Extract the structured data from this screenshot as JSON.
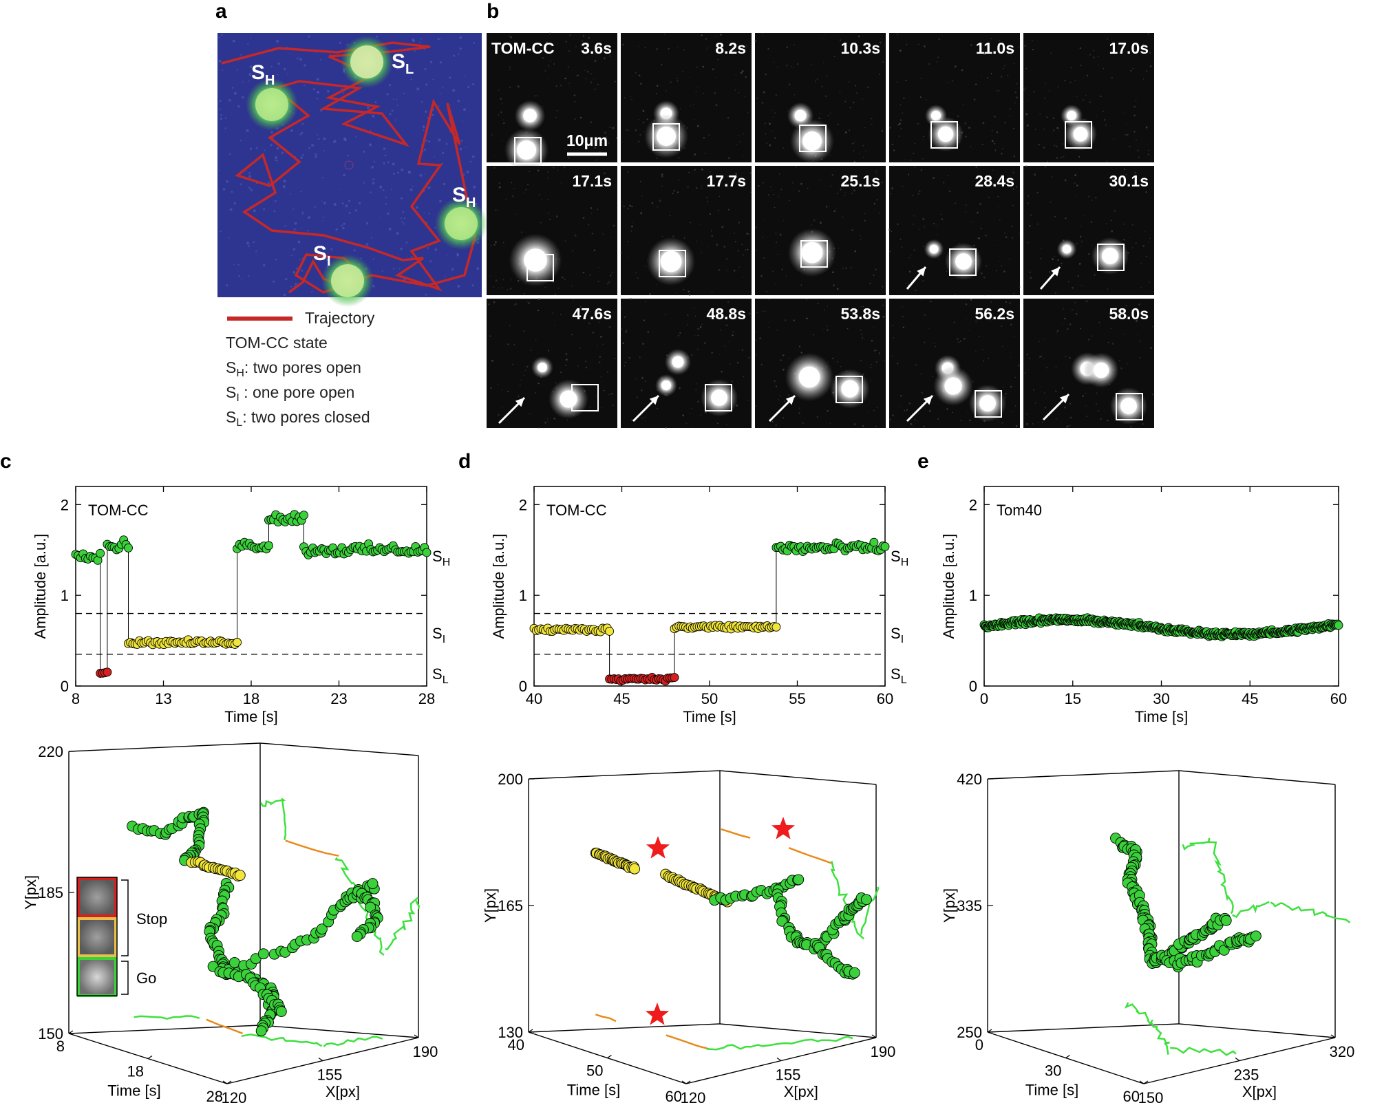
{
  "panels": {
    "a": {
      "label": "a",
      "states": [
        {
          "main": "S",
          "sub": "H"
        },
        {
          "main": "S",
          "sub": "L"
        },
        {
          "main": "S",
          "sub": "H"
        },
        {
          "main": "S",
          "sub": "I"
        }
      ],
      "legend": {
        "trajectory": "Trajectory",
        "state_title": "TOM-CC state",
        "items": [
          {
            "main": "S",
            "sub": "H",
            "text": ": two pores open"
          },
          {
            "main": "S",
            "sub": "I",
            "text": " : one pore open"
          },
          {
            "main": "S",
            "sub": "L",
            "text": ": two pores closed"
          }
        ]
      },
      "colors": {
        "background": "#2e3590",
        "trajectory": "#c62828",
        "particle": "#7ee08a"
      }
    },
    "b": {
      "label": "b",
      "sample": "TOM-CC",
      "scale_bar": "10μm",
      "frames": [
        {
          "time": "3.6s",
          "arrow": false
        },
        {
          "time": "8.2s",
          "arrow": false
        },
        {
          "time": "10.3s",
          "arrow": false
        },
        {
          "time": "11.0s",
          "arrow": false
        },
        {
          "time": "17.0s",
          "arrow": false
        },
        {
          "time": "17.1s",
          "arrow": false
        },
        {
          "time": "17.7s",
          "arrow": false
        },
        {
          "time": "25.1s",
          "arrow": false
        },
        {
          "time": "28.4s",
          "arrow": true
        },
        {
          "time": "30.1s",
          "arrow": true
        },
        {
          "time": "47.6s",
          "arrow": true
        },
        {
          "time": "48.8s",
          "arrow": true
        },
        {
          "time": "53.8s",
          "arrow": true
        },
        {
          "time": "56.2s",
          "arrow": true
        },
        {
          "time": "58.0s",
          "arrow": true
        }
      ]
    },
    "c": {
      "label": "c",
      "chart_data": {
        "type": "scatter",
        "title": "TOM-CC",
        "xlabel": "Time [s]",
        "ylabel": "Amplitude [a.u.]",
        "xlim": [
          8,
          28
        ],
        "ylim": [
          0,
          2.2
        ],
        "xticks": [
          8,
          13,
          18,
          23,
          28
        ],
        "yticks": [
          0,
          1,
          2
        ],
        "thresholds": [
          0.8,
          0.35
        ],
        "state_labels": [
          {
            "main": "S",
            "sub": "H",
            "y": 1.45
          },
          {
            "main": "S",
            "sub": "I",
            "y": 0.6
          },
          {
            "main": "S",
            "sub": "L",
            "y": 0.15
          }
        ],
        "segments": [
          {
            "state": "H",
            "x": [
              8.0,
              9.4
            ],
            "y": 1.45
          },
          {
            "state": "L",
            "x": [
              9.4,
              9.8
            ],
            "y": 0.15
          },
          {
            "state": "H",
            "x": [
              9.8,
              11.0
            ],
            "y": 1.55
          },
          {
            "state": "I",
            "x": [
              11.0,
              17.2
            ],
            "y": 0.48
          },
          {
            "state": "H",
            "x": [
              17.2,
              19.0
            ],
            "y": 1.55
          },
          {
            "state": "H",
            "x": [
              19.0,
              21.0
            ],
            "y": 1.85
          },
          {
            "state": "H",
            "x": [
              21.0,
              28.0
            ],
            "y": 1.5
          }
        ]
      },
      "traj_data": {
        "type": "scatter3d",
        "xlabel": "X[px]",
        "ylabel": "Y[px]",
        "tlabel": "Time [s]",
        "yticks": [
          "220",
          "185",
          "150"
        ],
        "tticks": [
          "8",
          "18",
          "28"
        ],
        "xticks": [
          "120",
          "155",
          "190"
        ],
        "inset": {
          "stop": "Stop",
          "go": "Go"
        }
      }
    },
    "d": {
      "label": "d",
      "chart_data": {
        "type": "scatter",
        "title": "TOM-CC",
        "xlabel": "Time [s]",
        "ylabel": "Amplitude [a.u.]",
        "xlim": [
          40,
          60
        ],
        "ylim": [
          0,
          2.2
        ],
        "xticks": [
          40,
          45,
          50,
          55,
          60
        ],
        "yticks": [
          0,
          1,
          2
        ],
        "thresholds": [
          0.8,
          0.35
        ],
        "state_labels": [
          {
            "main": "S",
            "sub": "H",
            "y": 1.45
          },
          {
            "main": "S",
            "sub": "I",
            "y": 0.6
          },
          {
            "main": "S",
            "sub": "L",
            "y": 0.15
          }
        ],
        "segments": [
          {
            "state": "I",
            "x": [
              40.0,
              44.3
            ],
            "y": 0.62
          },
          {
            "state": "L",
            "x": [
              44.3,
              48.0
            ],
            "y": 0.08
          },
          {
            "state": "I",
            "x": [
              48.0,
              53.8
            ],
            "y": 0.65
          },
          {
            "state": "H",
            "x": [
              53.8,
              60.0
            ],
            "y": 1.52
          }
        ]
      },
      "traj_data": {
        "type": "scatter3d",
        "xlabel": "X[px]",
        "ylabel": "Y[px]",
        "tlabel": "Time [s]",
        "yticks": [
          "200",
          "165",
          "130"
        ],
        "tticks": [
          "40",
          "50",
          "60"
        ],
        "xticks": [
          "120",
          "155",
          "190"
        ]
      }
    },
    "e": {
      "label": "e",
      "chart_data": {
        "type": "scatter",
        "title": "Tom40",
        "xlabel": "Time [s]",
        "ylabel": "Amplitude [a.u.]",
        "xlim": [
          0,
          60
        ],
        "ylim": [
          0,
          2.2
        ],
        "xticks": [
          0,
          15,
          30,
          45,
          60
        ],
        "yticks": [
          0,
          1,
          2
        ],
        "segments": [
          {
            "state": "H",
            "x": [
              0,
              60
            ],
            "y": 0.65
          }
        ]
      },
      "traj_data": {
        "type": "scatter3d",
        "xlabel": "X[px]",
        "ylabel": "Y[px]",
        "tlabel": "Time [s]",
        "yticks": [
          "420",
          "335",
          "250"
        ],
        "tticks": [
          "0",
          "30",
          "60"
        ],
        "xticks": [
          "150",
          "235",
          "320"
        ]
      }
    }
  },
  "colors": {
    "H": "#3ad13a",
    "I": "#f2e63a",
    "L": "#d62020",
    "pause": "#e88a1a",
    "star": "#ee1c1c"
  }
}
